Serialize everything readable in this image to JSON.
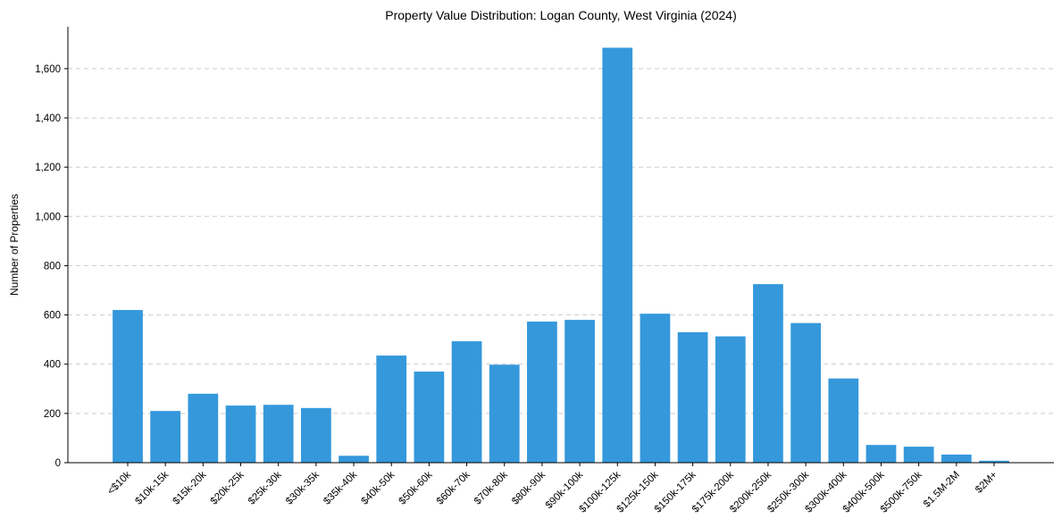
{
  "chart_data": {
    "type": "bar",
    "title": "Property Value Distribution: Logan County, West Virginia (2024)",
    "xlabel": "",
    "ylabel": "Number of Properties",
    "ylim": [
      0,
      1770
    ],
    "yticks": [
      0,
      200,
      400,
      600,
      800,
      1000,
      1200,
      1400,
      1600
    ],
    "ytick_labels": [
      "0",
      "200",
      "400",
      "600",
      "800",
      "1,000",
      "1,200",
      "1,400",
      "1,600"
    ],
    "grid": true,
    "categories": [
      "<$10k",
      "$10k-15k",
      "$15k-20k",
      "$20k-25k",
      "$25k-30k",
      "$30k-35k",
      "$35k-40k",
      "$40k-50k",
      "$50k-60k",
      "$60k-70k",
      "$70k-80k",
      "$80k-90k",
      "$90k-100k",
      "$100k-125k",
      "$125k-150k",
      "$150k-175k",
      "$175k-200k",
      "$200k-250k",
      "$250k-300k",
      "$300k-400k",
      "$400k-500k",
      "$500k-750k",
      "$1.5M-2M",
      "$2M+"
    ],
    "values": [
      620,
      210,
      280,
      232,
      235,
      222,
      28,
      435,
      370,
      493,
      398,
      573,
      580,
      1685,
      605,
      530,
      513,
      725,
      567,
      342,
      72,
      65,
      33,
      8
    ],
    "bar_color": "#3498db"
  }
}
